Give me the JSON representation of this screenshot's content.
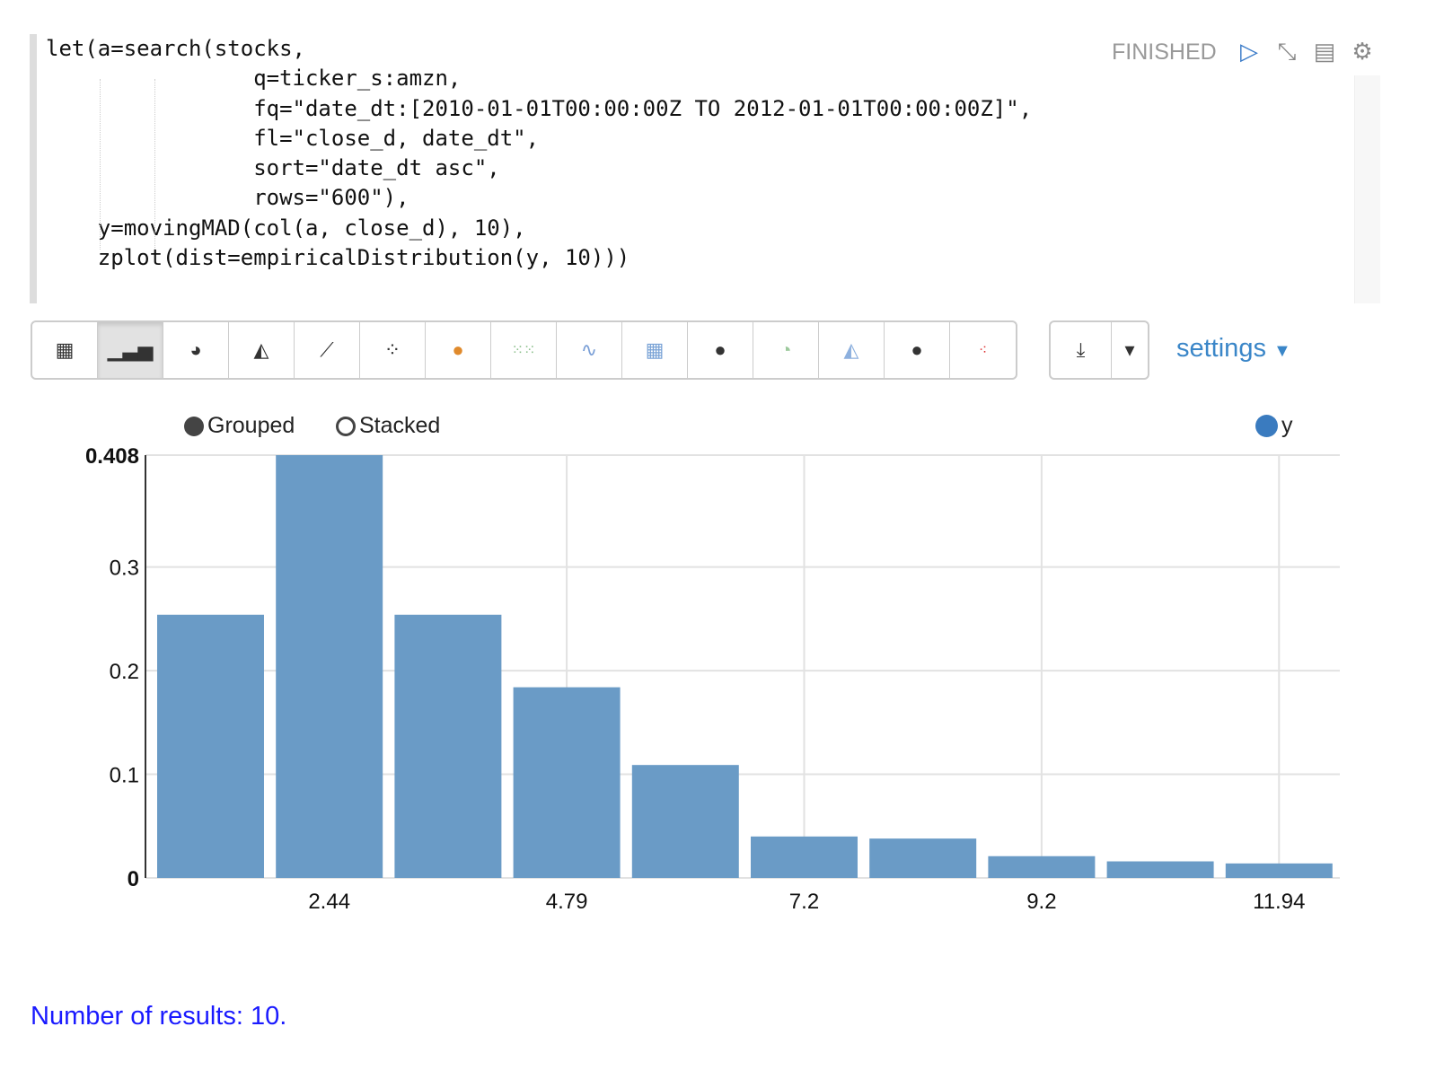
{
  "paragraph": {
    "code": "let(a=search(stocks,\n                q=ticker_s:amzn,\n                fq=\"date_dt:[2010-01-01T00:00:00Z TO 2012-01-01T00:00:00Z]\",\n                fl=\"close_d, date_dt\",\n                sort=\"date_dt asc\",\n                rows=\"600\"),\n    y=movingMAD(col(a, close_d), 10),\n    zplot(dist=empiricalDistribution(y, 10)))",
    "status": "FINISHED",
    "header_icons": [
      "run-icon",
      "collapse-icon",
      "book-icon",
      "gear-icon"
    ]
  },
  "toolbar": {
    "buttons": [
      "table",
      "bar-chart",
      "pie-chart",
      "area-chart",
      "line-chart",
      "scatter-chart",
      "globe-orange",
      "dot-matrix",
      "multi-line",
      "heatmap-grid",
      "globe",
      "pie-colored",
      "stacked-area",
      "globe-dark",
      "bubble"
    ],
    "active": "bar-chart",
    "settings_label": "settings"
  },
  "chart_options": {
    "grouped_label": "Grouped",
    "stacked_label": "Stacked",
    "selected": "Grouped"
  },
  "chart_data": {
    "type": "bar",
    "categories": [
      "",
      "2.44",
      "",
      "4.79",
      "",
      "7.2",
      "",
      "9.2",
      "",
      "11.94"
    ],
    "series": [
      {
        "name": "y",
        "values": [
          0.254,
          0.408,
          0.254,
          0.184,
          0.109,
          0.04,
          0.038,
          0.021,
          0.016,
          0.014
        ],
        "color": "#6a9bc6"
      }
    ],
    "yticks": [
      "0",
      "0.1",
      "0.2",
      "0.3",
      "0.408"
    ],
    "ylim": [
      0,
      0.408
    ],
    "legend": "top-right",
    "grid": true
  },
  "footer": {
    "results": "Number of results: 10."
  }
}
